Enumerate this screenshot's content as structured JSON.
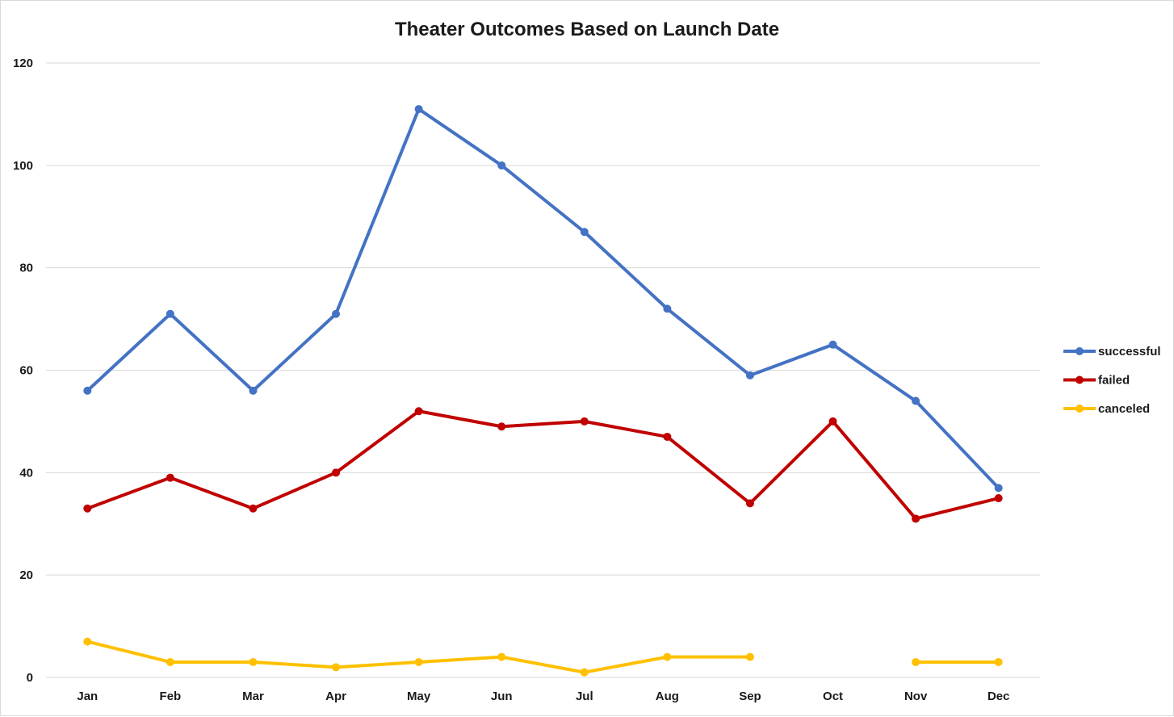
{
  "chart_data": {
    "type": "line",
    "title": "Theater Outcomes Based on Launch Date",
    "xlabel": "",
    "ylabel": "",
    "categories": [
      "Jan",
      "Feb",
      "Mar",
      "Apr",
      "May",
      "Jun",
      "Jul",
      "Aug",
      "Sep",
      "Oct",
      "Nov",
      "Dec"
    ],
    "ylim": [
      0,
      120
    ],
    "yticks": [
      0,
      20,
      40,
      60,
      80,
      100,
      120
    ],
    "grid": true,
    "legend_position": "right",
    "series": [
      {
        "name": "successful",
        "color": "#4472c4",
        "values": [
          56,
          71,
          56,
          71,
          111,
          100,
          87,
          72,
          59,
          65,
          54,
          37
        ]
      },
      {
        "name": "failed",
        "color": "#c00000",
        "values": [
          33,
          39,
          33,
          40,
          52,
          49,
          50,
          47,
          34,
          50,
          31,
          35
        ]
      },
      {
        "name": "canceled",
        "color": "#ffc000",
        "values": [
          7,
          3,
          3,
          2,
          3,
          4,
          1,
          4,
          4,
          null,
          3,
          3
        ]
      }
    ]
  }
}
